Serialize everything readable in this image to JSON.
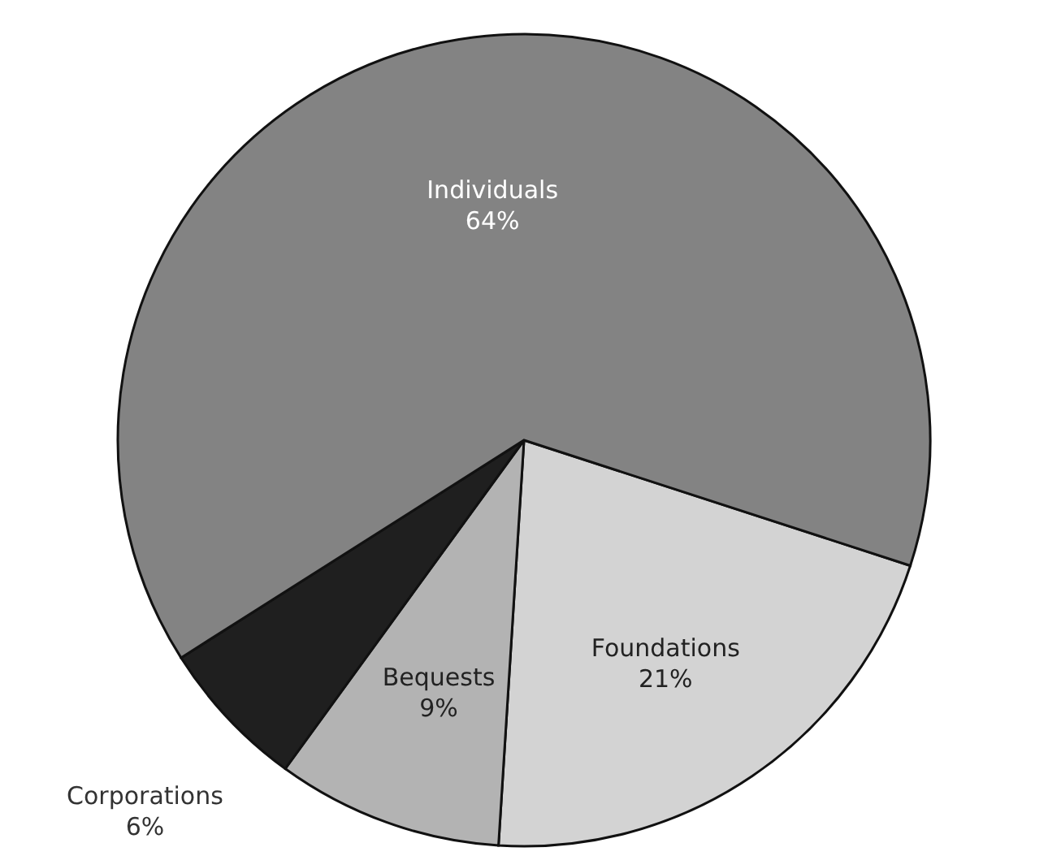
{
  "chart_data": {
    "type": "pie",
    "categories": [
      "Foundations",
      "Bequests",
      "Corporations",
      "Individuals"
    ],
    "values": [
      21,
      9,
      6,
      64
    ],
    "value_labels": [
      "21%",
      "9%",
      "6%",
      "64%"
    ],
    "colors": [
      "#d3d3d3",
      "#b3b3b3",
      "#1f1f1f",
      "#838383"
    ],
    "legend": false
  }
}
